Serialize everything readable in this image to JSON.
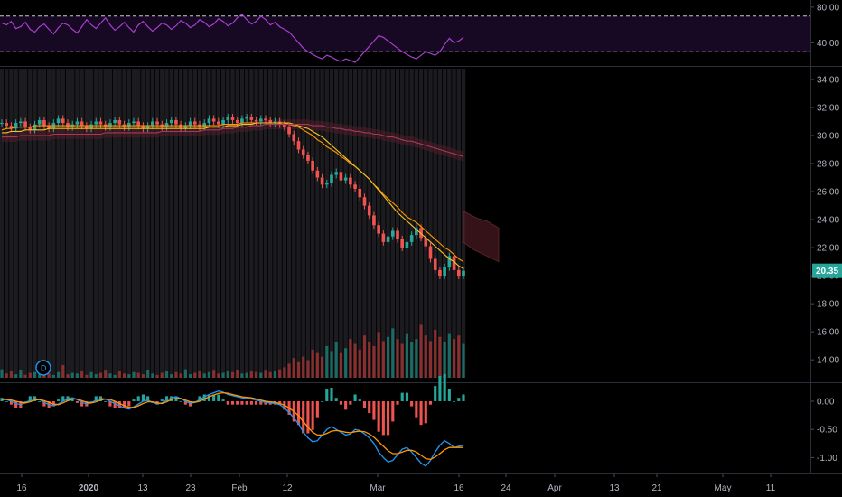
{
  "chart_data": [
    {
      "panel": "rsi",
      "type": "line",
      "y_ticks": [
        "80.00",
        "40.00"
      ],
      "ylim": [
        15,
        88
      ],
      "upper_band": 70,
      "lower_band": 30,
      "series": [
        {
          "color": "#a93fcf",
          "values": [
            62,
            60,
            64,
            56,
            58,
            63,
            55,
            52,
            58,
            61,
            55,
            50,
            57,
            62,
            60,
            55,
            51,
            58,
            66,
            60,
            56,
            62,
            68,
            60,
            54,
            58,
            63,
            57,
            52,
            60,
            64,
            58,
            53,
            57,
            62,
            60,
            55,
            59,
            65,
            62,
            57,
            60,
            66,
            63,
            58,
            61,
            67,
            64,
            59,
            62,
            68,
            72,
            66,
            61,
            64,
            70,
            66,
            60,
            63,
            58,
            55,
            52,
            46,
            40,
            34,
            30,
            27,
            24,
            22,
            26,
            24,
            21,
            19,
            22,
            20,
            18,
            24,
            30,
            36,
            42,
            48,
            46,
            42,
            38,
            34,
            30,
            27,
            24,
            22,
            26,
            30,
            28,
            26,
            30,
            38,
            45,
            40,
            42,
            46
          ]
        }
      ]
    },
    {
      "panel": "price",
      "type": "candlestick",
      "y_ticks": [
        "34.00",
        "32.00",
        "30.00",
        "28.00",
        "26.00",
        "24.00",
        "22.00",
        "20.00",
        "18.00",
        "16.00",
        "14.00"
      ],
      "ylim": [
        12.4,
        34.9
      ],
      "last_price": "20.35",
      "last_price_color": "#26a69a",
      "up_color": "#26a69a",
      "down_color": "#ef5350",
      "close": [
        30.9,
        30.7,
        30.5,
        30.9,
        31.0,
        30.6,
        30.4,
        30.8,
        31.1,
        30.7,
        30.5,
        30.9,
        31.2,
        30.9,
        30.6,
        30.8,
        31.0,
        30.7,
        30.5,
        30.8,
        31.0,
        30.8,
        30.6,
        30.9,
        31.1,
        30.8,
        30.6,
        30.9,
        31.0,
        30.7,
        30.5,
        30.7,
        31.0,
        30.8,
        30.6,
        30.9,
        31.1,
        30.8,
        30.5,
        30.7,
        31.0,
        30.8,
        30.6,
        30.9,
        31.2,
        31.0,
        30.8,
        31.1,
        31.3,
        31.1,
        30.9,
        31.2,
        31.3,
        31.1,
        31.0,
        31.2,
        31.1,
        30.9,
        31.0,
        30.8,
        30.6,
        30.1,
        29.6,
        29.0,
        28.6,
        28.2,
        27.5,
        27.0,
        26.5,
        26.6,
        27.2,
        27.4,
        26.8,
        27.0,
        26.5,
        26.2,
        25.6,
        25.0,
        24.3,
        23.6,
        23.0,
        22.4,
        22.8,
        23.2,
        22.6,
        22.0,
        22.4,
        22.9,
        23.4,
        22.7,
        22.1,
        21.2,
        20.4,
        20.0,
        20.6,
        21.4,
        20.4,
        20.0,
        20.35
      ],
      "vol_ylim": [
        0,
        100
      ],
      "volume": [
        12,
        6,
        9,
        5,
        11,
        4,
        7,
        8,
        5,
        10,
        6,
        4,
        8,
        18,
        5,
        7,
        6,
        9,
        4,
        8,
        5,
        7,
        10,
        6,
        4,
        9,
        6,
        5,
        8,
        7,
        5,
        11,
        6,
        4,
        7,
        9,
        5,
        8,
        6,
        12,
        5,
        7,
        9,
        6,
        8,
        10,
        6,
        7,
        9,
        8,
        11,
        6,
        7,
        9,
        8,
        7,
        10,
        8,
        9,
        12,
        15,
        20,
        28,
        22,
        30,
        25,
        40,
        35,
        30,
        45,
        38,
        50,
        35,
        42,
        55,
        48,
        40,
        60,
        50,
        45,
        65,
        52,
        58,
        70,
        55,
        48,
        62,
        50,
        55,
        75,
        60,
        52,
        68,
        58,
        50,
        62,
        55,
        60,
        48
      ],
      "ma_lines": [
        {
          "color": "#ff9800",
          "values": [
            30.4,
            30.5,
            30.5,
            30.6,
            30.6,
            30.6,
            30.6,
            30.7,
            30.7,
            30.7,
            30.7,
            30.7,
            30.7,
            30.7,
            30.7,
            30.7,
            30.7,
            30.7,
            30.7,
            30.7,
            30.7,
            30.7,
            30.7,
            30.7,
            30.7,
            30.7,
            30.7,
            30.7,
            30.7,
            30.7,
            30.7,
            30.7,
            30.7,
            30.7,
            30.7,
            30.7,
            30.7,
            30.7,
            30.7,
            30.7,
            30.7,
            30.7,
            30.7,
            30.7,
            30.7,
            30.7,
            30.7,
            30.8,
            30.8,
            30.8,
            30.8,
            30.9,
            30.9,
            30.9,
            30.9,
            30.9,
            30.9,
            30.9,
            30.9,
            30.9,
            30.9,
            30.8,
            30.7,
            30.6,
            30.4,
            30.2,
            30.0,
            29.7,
            29.5,
            29.2,
            29.0,
            28.8,
            28.5,
            28.3,
            28.0,
            27.8,
            27.5,
            27.2,
            26.9,
            26.5,
            26.2,
            25.8,
            25.5,
            25.2,
            24.9,
            24.5,
            24.2,
            24.0,
            23.8,
            23.5,
            23.2,
            22.9,
            22.6,
            22.3,
            22.0,
            21.8,
            21.5,
            21.2,
            21.0
          ]
        },
        {
          "color": "#f7c325",
          "values": [
            30.2,
            30.2,
            30.3,
            30.3,
            30.3,
            30.4,
            30.4,
            30.4,
            30.4,
            30.4,
            30.5,
            30.5,
            30.5,
            30.5,
            30.5,
            30.5,
            30.5,
            30.5,
            30.5,
            30.5,
            30.5,
            30.5,
            30.5,
            30.5,
            30.5,
            30.5,
            30.5,
            30.5,
            30.5,
            30.5,
            30.5,
            30.5,
            30.5,
            30.5,
            30.5,
            30.5,
            30.5,
            30.5,
            30.5,
            30.5,
            30.5,
            30.5,
            30.5,
            30.5,
            30.6,
            30.6,
            30.6,
            30.6,
            30.7,
            30.7,
            30.7,
            30.8,
            30.8,
            30.8,
            30.9,
            30.9,
            30.9,
            30.9,
            30.9,
            30.9,
            30.9,
            30.9,
            30.8,
            30.7,
            30.6,
            30.5,
            30.3,
            30.1,
            29.9,
            29.6,
            29.3,
            29.0,
            28.7,
            28.4,
            28.1,
            27.8,
            27.5,
            27.2,
            26.9,
            26.5,
            26.1,
            25.7,
            25.3,
            24.9,
            24.5,
            24.2,
            23.9,
            23.6,
            23.3,
            23.0,
            22.7,
            22.4,
            22.1,
            21.8,
            21.5,
            21.2,
            21.0,
            20.7,
            20.5
          ]
        },
        {
          "color": "#a43a54",
          "values": [
            29.9,
            29.9,
            29.9,
            29.9,
            30.0,
            30.0,
            30.0,
            30.0,
            30.0,
            30.0,
            30.0,
            30.1,
            30.1,
            30.1,
            30.1,
            30.1,
            30.1,
            30.1,
            30.1,
            30.1,
            30.1,
            30.1,
            30.2,
            30.2,
            30.2,
            30.2,
            30.2,
            30.2,
            30.2,
            30.2,
            30.2,
            30.2,
            30.2,
            30.2,
            30.3,
            30.3,
            30.3,
            30.3,
            30.3,
            30.3,
            30.3,
            30.3,
            30.3,
            30.4,
            30.4,
            30.4,
            30.4,
            30.5,
            30.5,
            30.5,
            30.6,
            30.6,
            30.6,
            30.7,
            30.7,
            30.7,
            30.8,
            30.8,
            30.8,
            30.8,
            30.8,
            30.8,
            30.8,
            30.8,
            30.8,
            30.8,
            30.7,
            30.7,
            30.7,
            30.6,
            30.6,
            30.5,
            30.5,
            30.4,
            30.4,
            30.3,
            30.3,
            30.2,
            30.2,
            30.1,
            30.1,
            30.0,
            29.9,
            29.9,
            29.8,
            29.7,
            29.6,
            29.6,
            29.5,
            29.4,
            29.3,
            29.2,
            29.1,
            29.0,
            28.9,
            28.8,
            28.7,
            28.6,
            28.5
          ]
        }
      ]
    },
    {
      "panel": "macd",
      "type": "line",
      "y_ticks": [
        "0.00",
        "-0.50",
        "-1.00"
      ],
      "ylim": [
        -1.25,
        0.32
      ],
      "series": [
        {
          "color": "#2196f3",
          "values": [
            0.05,
            0.03,
            0.0,
            -0.04,
            -0.06,
            -0.03,
            0.02,
            0.05,
            0.03,
            -0.02,
            -0.06,
            -0.08,
            -0.05,
            0.0,
            0.04,
            0.06,
            0.03,
            -0.02,
            -0.05,
            -0.03,
            0.02,
            0.05,
            0.04,
            0.0,
            -0.04,
            -0.08,
            -0.12,
            -0.14,
            -0.1,
            -0.05,
            0.0,
            0.02,
            -0.02,
            -0.05,
            -0.03,
            0.02,
            0.06,
            0.08,
            0.05,
            0.0,
            -0.04,
            -0.02,
            0.03,
            0.08,
            0.12,
            0.15,
            0.18,
            0.16,
            0.12,
            0.1,
            0.08,
            0.06,
            0.05,
            0.04,
            0.02,
            0.0,
            -0.02,
            -0.03,
            -0.04,
            -0.06,
            -0.12,
            -0.2,
            -0.3,
            -0.4,
            -0.55,
            -0.65,
            -0.72,
            -0.7,
            -0.6,
            -0.5,
            -0.45,
            -0.5,
            -0.55,
            -0.6,
            -0.58,
            -0.5,
            -0.52,
            -0.58,
            -0.65,
            -0.75,
            -0.9,
            -1.0,
            -1.08,
            -1.05,
            -0.95,
            -0.85,
            -0.82,
            -0.9,
            -1.0,
            -1.1,
            -1.15,
            -1.05,
            -0.9,
            -0.78,
            -0.7,
            -0.75,
            -0.82,
            -0.8,
            -0.78
          ]
        },
        {
          "color": "#ff9800",
          "values": [
            0.03,
            0.03,
            0.02,
            0.0,
            -0.02,
            -0.03,
            -0.01,
            0.02,
            0.03,
            0.01,
            -0.02,
            -0.05,
            -0.06,
            -0.03,
            0.01,
            0.04,
            0.04,
            0.01,
            -0.02,
            -0.03,
            -0.01,
            0.02,
            0.04,
            0.03,
            0.0,
            -0.04,
            -0.08,
            -0.11,
            -0.11,
            -0.08,
            -0.04,
            -0.01,
            -0.01,
            -0.03,
            -0.04,
            -0.01,
            0.03,
            0.05,
            0.05,
            0.02,
            -0.01,
            -0.02,
            0.0,
            0.04,
            0.08,
            0.11,
            0.14,
            0.15,
            0.14,
            0.12,
            0.1,
            0.08,
            0.07,
            0.06,
            0.04,
            0.02,
            0.0,
            -0.01,
            -0.02,
            -0.04,
            -0.07,
            -0.12,
            -0.18,
            -0.26,
            -0.36,
            -0.46,
            -0.55,
            -0.6,
            -0.6,
            -0.57,
            -0.53,
            -0.52,
            -0.53,
            -0.55,
            -0.56,
            -0.54,
            -0.53,
            -0.54,
            -0.58,
            -0.64,
            -0.72,
            -0.8,
            -0.88,
            -0.93,
            -0.93,
            -0.9,
            -0.87,
            -0.87,
            -0.9,
            -0.96,
            -1.02,
            -1.03,
            -0.99,
            -0.93,
            -0.86,
            -0.82,
            -0.82,
            -0.82,
            -0.82
          ]
        }
      ]
    }
  ],
  "x_axis": {
    "labels": [
      "16",
      "2020",
      "13",
      "23",
      "Feb",
      "12",
      "Mar",
      "16",
      "24",
      "Apr",
      "13",
      "21",
      "May",
      "11"
    ]
  },
  "markers": {
    "event_badge": "D"
  }
}
